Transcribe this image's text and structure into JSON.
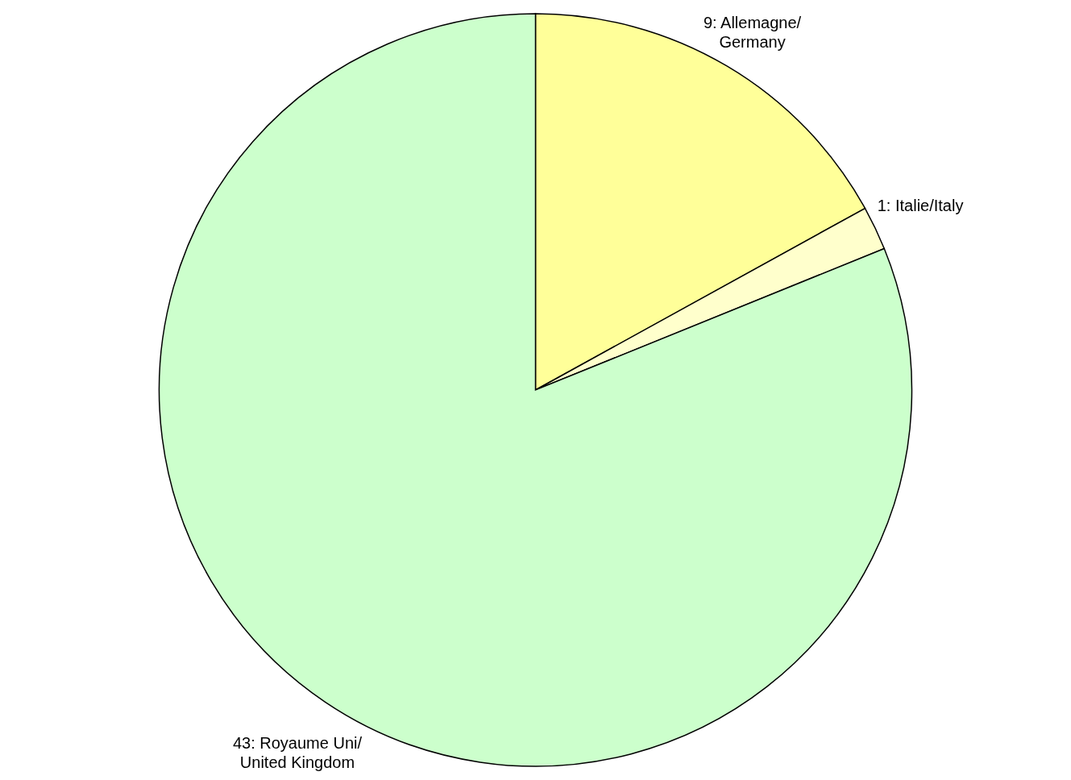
{
  "chart_data": {
    "type": "pie",
    "categories": [
      "Allemagne/ Germany",
      "Italie/Italy",
      "Royaume Uni/ United Kingdom"
    ],
    "values": [
      9,
      1,
      43
    ],
    "colors": [
      "#ffff99",
      "#ffffcc",
      "#ccffcc"
    ],
    "value_labels": [
      "9:",
      "1:",
      "43:"
    ]
  }
}
